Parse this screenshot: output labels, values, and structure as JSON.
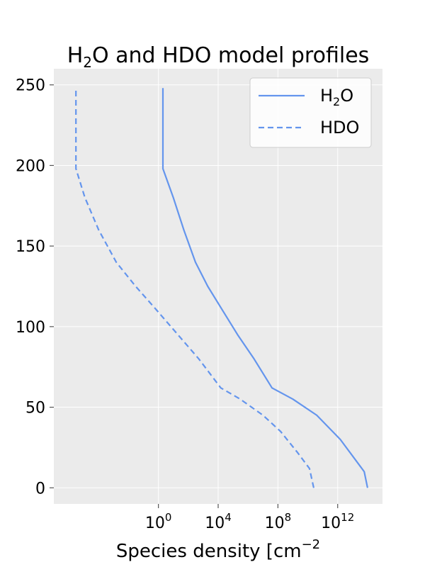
{
  "chart_data": {
    "type": "line",
    "title": {
      "pre": "H",
      "sub": "2",
      "post": "O and HDO model profiles"
    },
    "xlabel": {
      "main": "Species density [cm",
      "sup": "−2"
    },
    "ylabel": "",
    "x_scale": "log",
    "xlim": [
      1e-07,
      1000000000000000.0
    ],
    "ylim": [
      -10,
      260
    ],
    "x_ticks": [
      {
        "base": "10",
        "exp": "0",
        "value": 1
      },
      {
        "base": "10",
        "exp": "4",
        "value": 10000
      },
      {
        "base": "10",
        "exp": "8",
        "value": 100000000
      },
      {
        "base": "10",
        "exp": "12",
        "value": 1000000000000
      }
    ],
    "y_ticks": [
      {
        "label": "0",
        "value": 0
      },
      {
        "label": "50",
        "value": 50
      },
      {
        "label": "100",
        "value": 100
      },
      {
        "label": "150",
        "value": 150
      },
      {
        "label": "200",
        "value": 200
      },
      {
        "label": "250",
        "value": 250
      }
    ],
    "grid": true,
    "legend_position": "top-right",
    "series": [
      {
        "name": "H2O",
        "legend": {
          "pre": "H",
          "sub": "2",
          "post": "O"
        },
        "color": "#6495ED",
        "style": "solid",
        "points": [
          {
            "x": 100000000000000.0,
            "y": 0
          },
          {
            "x": 60000000000000.0,
            "y": 10
          },
          {
            "x": 1500000000000.0,
            "y": 30
          },
          {
            "x": 40000000000.0,
            "y": 45
          },
          {
            "x": 1000000000.0,
            "y": 55
          },
          {
            "x": 40000000.0,
            "y": 62
          },
          {
            "x": 2500000.0,
            "y": 80
          },
          {
            "x": 200000.0,
            "y": 95
          },
          {
            "x": 20000.0,
            "y": 110
          },
          {
            "x": 2000.0,
            "y": 125
          },
          {
            "x": 300,
            "y": 140
          },
          {
            "x": 50,
            "y": 160
          },
          {
            "x": 10,
            "y": 180
          },
          {
            "x": 2,
            "y": 198
          },
          {
            "x": 2,
            "y": 248
          }
        ]
      },
      {
        "name": "HDO",
        "legend": {
          "pre": "HDO",
          "sub": "",
          "post": ""
        },
        "color": "#6495ED",
        "style": "dashed",
        "points": [
          {
            "x": 25000000000.0,
            "y": 0
          },
          {
            "x": 13000000000.0,
            "y": 12
          },
          {
            "x": 2000000000.0,
            "y": 22
          },
          {
            "x": 150000000.0,
            "y": 35
          },
          {
            "x": 10000000.0,
            "y": 45
          },
          {
            "x": 300000.0,
            "y": 55
          },
          {
            "x": 15000.0,
            "y": 62
          },
          {
            "x": 500,
            "y": 80
          },
          {
            "x": 20,
            "y": 95
          },
          {
            "x": 0.8,
            "y": 110
          },
          {
            "x": 0.03,
            "y": 125
          },
          {
            "x": 0.0015,
            "y": 140
          },
          {
            "x": 0.0001,
            "y": 160
          },
          {
            "x": 1.2e-05,
            "y": 180
          },
          {
            "x": 3e-06,
            "y": 198
          },
          {
            "x": 3e-06,
            "y": 248
          }
        ]
      }
    ]
  }
}
